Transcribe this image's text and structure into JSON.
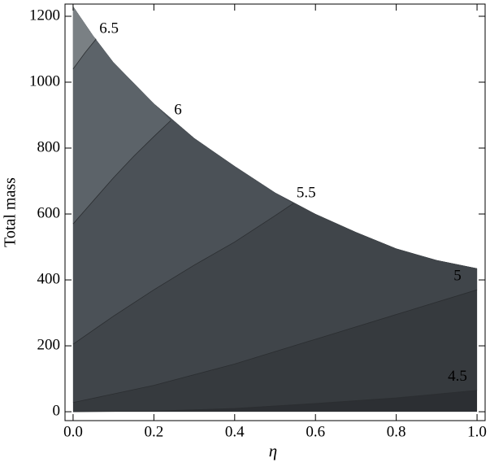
{
  "chart_data": {
    "type": "contour",
    "xlabel": "η",
    "ylabel": "Total mass",
    "xlim": [
      -0.02,
      1.02
    ],
    "ylim": [
      -27,
      1237
    ],
    "xticks": [
      {
        "value": 0,
        "label": "0.0"
      },
      0.2,
      0.4,
      0.6,
      0.8,
      {
        "value": 1,
        "label": "1.0"
      }
    ],
    "yticks": [
      0,
      200,
      400,
      600,
      800,
      1000,
      1200
    ],
    "line_color": "#2b2e31",
    "boundary": {
      "color": "#2c2f33",
      "x": [
        0,
        0.05,
        0.1,
        0.2,
        0.3,
        0.4,
        0.5,
        0.6,
        0.7,
        0.8,
        0.9,
        1,
        1,
        0
      ],
      "y": [
        1230,
        1140,
        1060,
        935,
        830,
        745,
        665,
        600,
        545,
        495,
        460,
        435,
        0,
        0
      ]
    },
    "contours": [
      {
        "name": "4.5",
        "color": "#363a3e",
        "label_color": "#ffffff",
        "x": [
          0,
          0.2,
          0.4,
          0.6,
          0.8,
          1
        ],
        "y": [
          0,
          2,
          10,
          25,
          42,
          65
        ]
      },
      {
        "name": "5",
        "color": "#40454a",
        "label_color": "#ffffff",
        "x": [
          0,
          0.2,
          0.4,
          0.6,
          0.8,
          1
        ],
        "y": [
          28,
          80,
          145,
          220,
          295,
          370
        ]
      },
      {
        "name": "5.5",
        "color": "#4b5157",
        "label_color": "#000000",
        "x": [
          0,
          0.1,
          0.2,
          0.3,
          0.4,
          0.5,
          0.545
        ],
        "y": [
          205,
          290,
          370,
          445,
          515,
          595,
          632
        ]
      },
      {
        "name": "6",
        "color": "#5c6369",
        "label_color": "#000000",
        "x": [
          0,
          0.05,
          0.1,
          0.15,
          0.2,
          0.242
        ],
        "y": [
          570,
          640,
          710,
          775,
          835,
          884
        ]
      },
      {
        "name": "6.5",
        "color": "#7a8084",
        "label_color": "#000000",
        "x": [
          0,
          0.03,
          0.057
        ],
        "y": [
          1040,
          1090,
          1131
        ]
      }
    ]
  }
}
